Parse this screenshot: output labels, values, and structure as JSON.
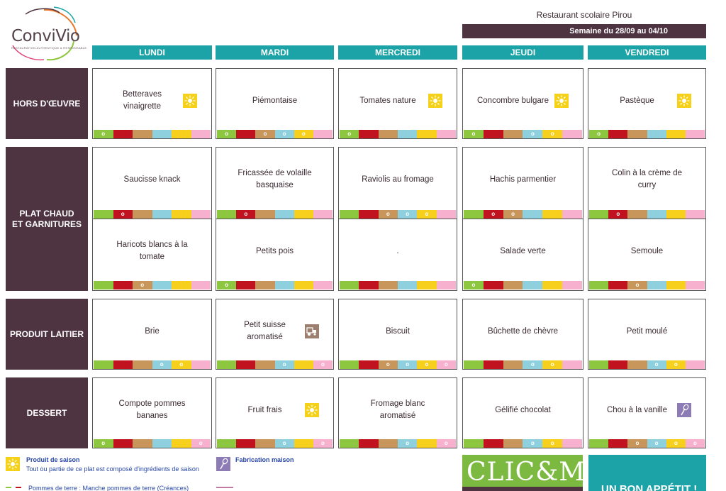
{
  "brand": {
    "name": "ConviVio",
    "tagline": "RESTAURATION AUTHENTIQUE & RESPONSABLE",
    "colors": {
      "teal": "#1ba3a8",
      "plum": "#4e3440"
    }
  },
  "header": {
    "restaurant": "Restaurant scolaire Pirou",
    "week": "Semaine du 28/09 au 04/10"
  },
  "days": [
    "LUNDI",
    "MARDI",
    "MERCREDI",
    "JEUDI",
    "VENDREDI"
  ],
  "categories": {
    "hors_doeuvre": "HORS D'ŒUVRE",
    "plat_line1": "PLAT CHAUD",
    "plat_line2": "ET GARNITURES",
    "laitier": "PRODUIT LAITIER",
    "dessert": "DESSERT"
  },
  "allergen_colors": [
    "#8dc63f",
    "#c1121f",
    "#c8955a",
    "#8fd0df",
    "#f7d01e",
    "#f7b0cd"
  ],
  "allergen_marker": "o",
  "menu": {
    "hors_doeuvre": [
      {
        "lines": [
          "Betteraves",
          "vinaigrette"
        ],
        "badge": "saison",
        "marks": [
          true,
          false,
          false,
          false,
          false,
          false
        ]
      },
      {
        "lines": [
          "Piémontaise"
        ],
        "badge": "",
        "marks": [
          true,
          false,
          true,
          true,
          true,
          false
        ]
      },
      {
        "lines": [
          "Tomates nature"
        ],
        "badge": "saison",
        "marks": [
          true,
          false,
          false,
          false,
          false,
          false
        ]
      },
      {
        "lines": [
          "Concombre bulgare"
        ],
        "badge": "saison",
        "marks": [
          true,
          false,
          false,
          true,
          true,
          false
        ]
      },
      {
        "lines": [
          "Pastèque"
        ],
        "badge": "saison",
        "marks": [
          true,
          false,
          false,
          false,
          false,
          false
        ]
      }
    ],
    "plat": [
      {
        "lines": [
          "Saucisse knack"
        ],
        "badge": "",
        "marks": [
          false,
          true,
          false,
          false,
          false,
          false
        ]
      },
      {
        "lines": [
          "Fricassée de volaille",
          "basquaise"
        ],
        "badge": "",
        "marks": [
          false,
          true,
          false,
          false,
          false,
          false
        ]
      },
      {
        "lines": [
          "Raviolis au fromage"
        ],
        "badge": "",
        "marks": [
          false,
          false,
          true,
          true,
          true,
          false
        ]
      },
      {
        "lines": [
          "Hachis parmentier"
        ],
        "badge": "",
        "marks": [
          false,
          true,
          true,
          false,
          false,
          false
        ]
      },
      {
        "lines": [
          "Colin à la crème de",
          "curry"
        ],
        "badge": "",
        "marks": [
          false,
          true,
          false,
          false,
          false,
          false
        ]
      }
    ],
    "garniture": [
      {
        "lines": [
          "Haricots blancs à la",
          "tomate"
        ],
        "badge": "",
        "marks": [
          false,
          false,
          true,
          false,
          false,
          false
        ]
      },
      {
        "lines": [
          "Petits pois"
        ],
        "badge": "",
        "marks": [
          true,
          false,
          false,
          false,
          false,
          false
        ]
      },
      {
        "lines": [
          "."
        ],
        "badge": "",
        "marks": [
          false,
          false,
          false,
          false,
          false,
          false
        ]
      },
      {
        "lines": [
          "Salade verte"
        ],
        "badge": "",
        "marks": [
          true,
          false,
          false,
          false,
          false,
          false
        ]
      },
      {
        "lines": [
          "Semoule"
        ],
        "badge": "",
        "marks": [
          false,
          false,
          true,
          false,
          false,
          false
        ]
      }
    ],
    "laitier": [
      {
        "lines": [
          "Brie"
        ],
        "badge": "",
        "marks": [
          false,
          false,
          false,
          true,
          true,
          false
        ]
      },
      {
        "lines": [
          "Petit suisse",
          "aromatisé"
        ],
        "badge": "local",
        "marks": [
          false,
          false,
          false,
          true,
          false,
          true
        ]
      },
      {
        "lines": [
          "Biscuit"
        ],
        "badge": "",
        "marks": [
          false,
          false,
          true,
          true,
          true,
          true
        ]
      },
      {
        "lines": [
          "Bûchette de chèvre"
        ],
        "badge": "",
        "marks": [
          false,
          false,
          false,
          true,
          true,
          false
        ]
      },
      {
        "lines": [
          "Petit moulé"
        ],
        "badge": "",
        "marks": [
          false,
          false,
          false,
          true,
          true,
          false
        ]
      }
    ],
    "dessert": [
      {
        "lines": [
          "Compote pommes",
          "bananes"
        ],
        "badge": "",
        "marks": [
          true,
          false,
          false,
          false,
          false,
          true
        ]
      },
      {
        "lines": [
          "Fruit frais"
        ],
        "badge": "saison",
        "marks": [
          false,
          false,
          false,
          true,
          false,
          true
        ]
      },
      {
        "lines": [
          "Fromage blanc",
          "aromatisé"
        ],
        "badge": "",
        "marks": [
          false,
          false,
          false,
          true,
          false,
          true
        ]
      },
      {
        "lines": [
          "Gélifié chocolat"
        ],
        "badge": "",
        "marks": [
          false,
          false,
          false,
          true,
          true,
          false
        ]
      },
      {
        "lines": [
          "Chou à la vanille"
        ],
        "badge": "maison",
        "marks": [
          false,
          false,
          true,
          true,
          true,
          true
        ]
      }
    ]
  },
  "legend": {
    "saison_title": "Produit de saison",
    "saison_desc": "Tout ou partie de ce plat est composé d'ingrédients de saison",
    "maison_title": "Fabrication maison",
    "cut_text": "Pommes de terre : Manche pommes de terre (Créances)"
  },
  "promo": {
    "clic": "CLIC&MIAM!",
    "appetit": "UN BON APPÉTIT !"
  }
}
